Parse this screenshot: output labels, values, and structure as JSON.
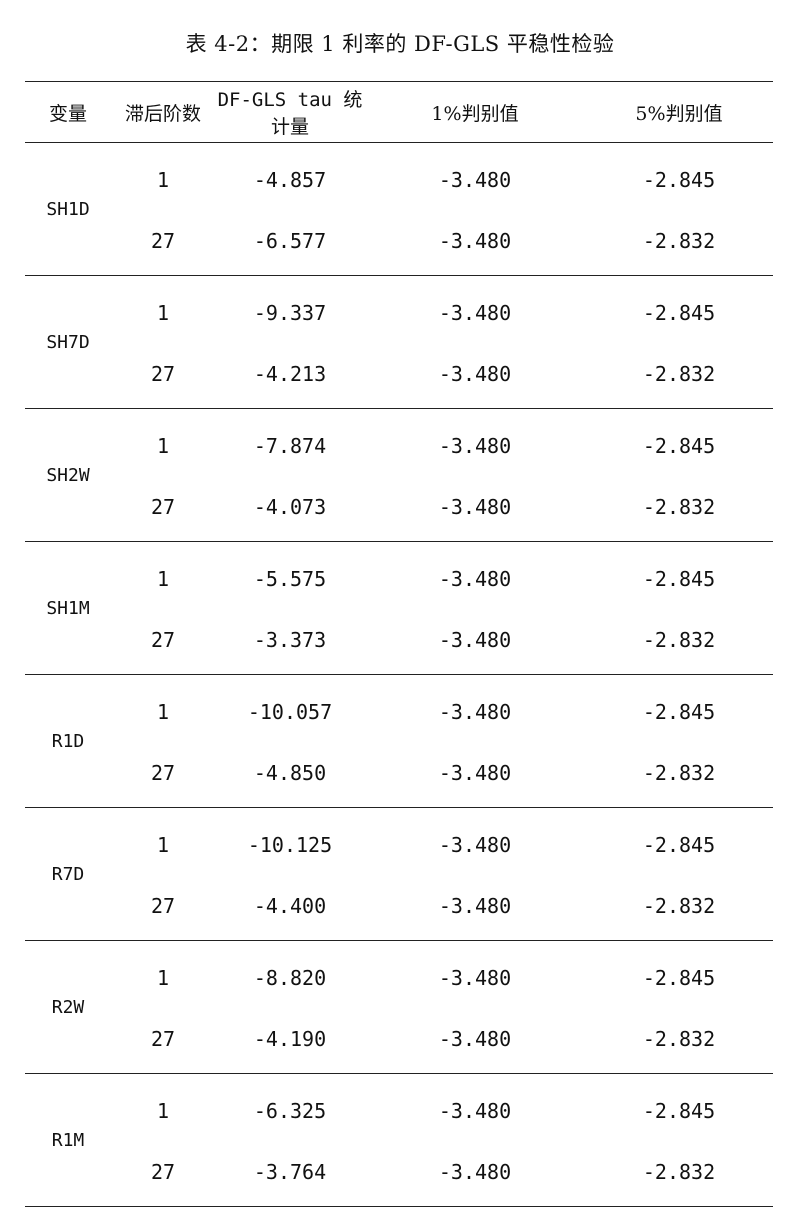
{
  "title": "表 4-2：期限 1 利率的 DF-GLS 平稳性检验",
  "headers": {
    "variable": "变量",
    "lag": "滞后阶数",
    "tau": "DF-GLS tau 统计量",
    "crit1": "1%判别值",
    "crit5": "5%判别值"
  },
  "rows": [
    {
      "variable": "SH1D",
      "r1": {
        "lag": "1",
        "tau": "-4.857",
        "crit1": "-3.480",
        "crit5": "-2.845"
      },
      "r2": {
        "lag": "27",
        "tau": "-6.577",
        "crit1": "-3.480",
        "crit5": "-2.832"
      }
    },
    {
      "variable": "SH7D",
      "r1": {
        "lag": "1",
        "tau": "-9.337",
        "crit1": "-3.480",
        "crit5": "-2.845"
      },
      "r2": {
        "lag": "27",
        "tau": "-4.213",
        "crit1": "-3.480",
        "crit5": "-2.832"
      }
    },
    {
      "variable": "SH2W",
      "r1": {
        "lag": "1",
        "tau": "-7.874",
        "crit1": "-3.480",
        "crit5": "-2.845"
      },
      "r2": {
        "lag": "27",
        "tau": "-4.073",
        "crit1": "-3.480",
        "crit5": "-2.832"
      }
    },
    {
      "variable": "SH1M",
      "r1": {
        "lag": "1",
        "tau": "-5.575",
        "crit1": "-3.480",
        "crit5": "-2.845"
      },
      "r2": {
        "lag": "27",
        "tau": "-3.373",
        "crit1": "-3.480",
        "crit5": "-2.832"
      }
    },
    {
      "variable": "R1D",
      "r1": {
        "lag": "1",
        "tau": "-10.057",
        "crit1": "-3.480",
        "crit5": "-2.845"
      },
      "r2": {
        "lag": "27",
        "tau": "-4.850",
        "crit1": "-3.480",
        "crit5": "-2.832"
      }
    },
    {
      "variable": "R7D",
      "r1": {
        "lag": "1",
        "tau": "-10.125",
        "crit1": "-3.480",
        "crit5": "-2.845"
      },
      "r2": {
        "lag": "27",
        "tau": "-4.400",
        "crit1": "-3.480",
        "crit5": "-2.832"
      }
    },
    {
      "variable": "R2W",
      "r1": {
        "lag": "1",
        "tau": "-8.820",
        "crit1": "-3.480",
        "crit5": "-2.845"
      },
      "r2": {
        "lag": "27",
        "tau": "-4.190",
        "crit1": "-3.480",
        "crit5": "-2.832"
      }
    },
    {
      "variable": "R1M",
      "r1": {
        "lag": "1",
        "tau": "-6.325",
        "crit1": "-3.480",
        "crit5": "-2.845"
      },
      "r2": {
        "lag": "27",
        "tau": "-3.764",
        "crit1": "-3.480",
        "crit5": "-2.832"
      }
    }
  ]
}
